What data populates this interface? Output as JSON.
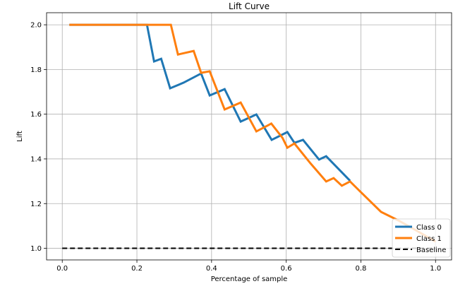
{
  "chart_data": {
    "type": "line",
    "title": "Lift Curve",
    "xlabel": "Percentage of sample",
    "ylabel": "Lift",
    "xlim": [
      -0.042,
      1.043
    ],
    "ylim": [
      0.948,
      2.054
    ],
    "xticks": [
      0.0,
      0.2,
      0.4,
      0.6,
      0.8,
      1.0
    ],
    "xtick_labels": [
      "0.0",
      "0.2",
      "0.4",
      "0.6",
      "0.8",
      "1.0"
    ],
    "yticks": [
      1.0,
      1.2,
      1.4,
      1.6,
      1.8,
      2.0
    ],
    "ytick_labels": [
      "1.0",
      "1.2",
      "1.4",
      "1.6",
      "1.8",
      "2.0"
    ],
    "grid": true,
    "legend": "bottom-right",
    "series": [
      {
        "name": "Class 0",
        "color": "#1f77b4",
        "style": "solid",
        "x": [
          0.019,
          0.227,
          0.246,
          0.265,
          0.289,
          0.325,
          0.372,
          0.395,
          0.435,
          0.478,
          0.52,
          0.561,
          0.603,
          0.622,
          0.645,
          0.688,
          0.707,
          0.771
        ],
        "y": [
          2.0,
          2.0,
          1.836,
          1.848,
          1.716,
          1.741,
          1.782,
          1.684,
          1.712,
          1.567,
          1.599,
          1.485,
          1.52,
          1.472,
          1.485,
          1.397,
          1.412,
          1.302
        ]
      },
      {
        "name": "Class 1",
        "color": "#ff7f0e",
        "style": "solid",
        "x": [
          0.019,
          0.291,
          0.31,
          0.352,
          0.372,
          0.395,
          0.435,
          0.478,
          0.52,
          0.56,
          0.59,
          0.603,
          0.622,
          0.665,
          0.707,
          0.727,
          0.749,
          0.771,
          0.8,
          0.854,
          0.9,
          0.943,
          1.0
        ],
        "y": [
          2.0,
          2.0,
          1.867,
          1.883,
          1.785,
          1.792,
          1.621,
          1.652,
          1.523,
          1.558,
          1.494,
          1.45,
          1.469,
          1.38,
          1.299,
          1.314,
          1.28,
          1.299,
          1.251,
          1.163,
          1.125,
          1.085,
          1.03
        ]
      },
      {
        "name": "Baseline",
        "color": "#000000",
        "style": "dashed",
        "x": [
          0.0,
          1.0
        ],
        "y": [
          1.0,
          1.0
        ]
      }
    ]
  }
}
